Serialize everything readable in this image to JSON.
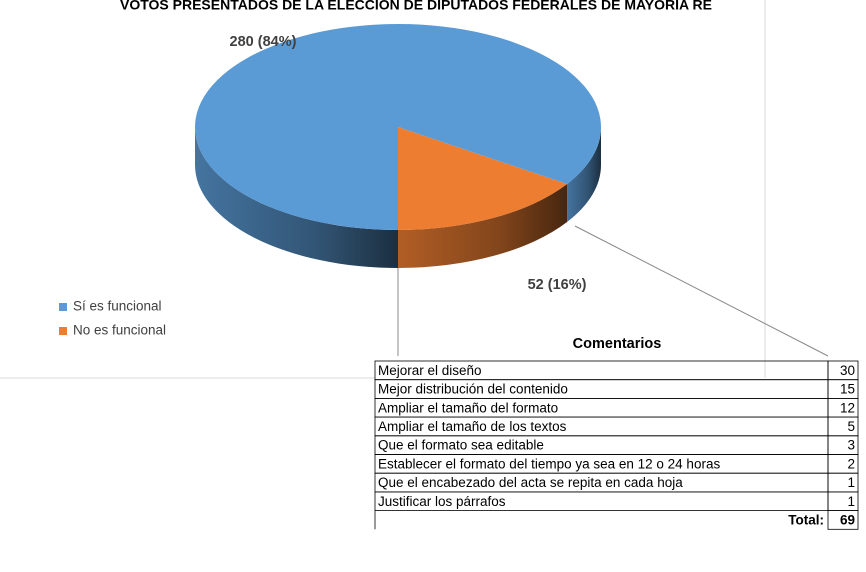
{
  "chart_data": {
    "type": "pie",
    "title": "VOTOS PRESENTADOS DE LA ELECCIÓN DE DIPUTADOS FEDERALES DE MAYORÍA RE",
    "categories": [
      "Sí es funcional",
      "No es funcional"
    ],
    "values": [
      280,
      52
    ],
    "value_labels": [
      "280 (84%)",
      "52 (16%)"
    ],
    "colors": [
      "#5b9bd5",
      "#ed7d31"
    ],
    "legend": "left"
  },
  "table": {
    "title": "Comentarios",
    "rows": [
      [
        "Mejorar el diseño",
        "30"
      ],
      [
        "Mejor distribución del contenido",
        "15"
      ],
      [
        "Ampliar el tamaño del formato",
        "12"
      ],
      [
        "Ampliar el tamaño de los textos",
        "5"
      ],
      [
        "Que el formato sea editable",
        "3"
      ],
      [
        "Establecer el formato del tiempo ya sea en 12 o 24 horas",
        "2"
      ],
      [
        "Que el encabezado del acta se repita en cada hoja",
        "1"
      ],
      [
        "Justificar los párrafos",
        "1"
      ]
    ],
    "total": {
      "label": "Total:",
      "value": "69"
    }
  }
}
